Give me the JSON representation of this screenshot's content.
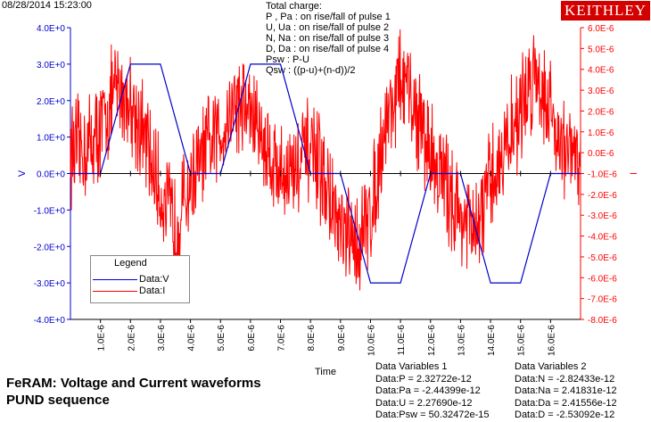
{
  "header": {
    "timestamp": "08/28/2014 15:23:00",
    "logo_text": "KEITHLEY"
  },
  "charge_info": {
    "title": "Total charge:",
    "lines": [
      "P , Pa  :  on rise/fall of pulse 1",
      "U, Ua  :  on rise/fall of pulse 2",
      "N, Na  :  on rise/fall of pulse 3",
      "D, Da  :  on rise/fall of pulse 4",
      "Psw :  P-U",
      "Qsw :  ((p-u)+(n-d))/2"
    ]
  },
  "chart_data": {
    "type": "line",
    "title": "FeRAM: Voltage and Current waveforms",
    "subtitle": "PUND sequence",
    "xlabel": "Time",
    "ylabel": "V",
    "y2label": "I",
    "xlim": [
      0,
      1.7e-05
    ],
    "ylim": [
      -4.0,
      4.0
    ],
    "y2lim": [
      -8e-06,
      6e-06
    ],
    "grid": false,
    "legend_position": "bottom-left",
    "legend_title": "Legend",
    "x_ticks": [
      "1.0E-6",
      "2.0E-6",
      "3.0E-6",
      "4.0E-6",
      "5.0E-6",
      "6.0E-6",
      "7.0E-6",
      "8.0E-6",
      "9.0E-6",
      "10.0E-6",
      "11.0E-6",
      "12.0E-6",
      "13.0E-6",
      "14.0E-6",
      "15.0E-6",
      "16.0E-6"
    ],
    "y_ticks": [
      "4.0E+0",
      "3.0E+0",
      "2.0E+0",
      "1.0E+0",
      "0.0E+0",
      "-1.0E+0",
      "-2.0E+0",
      "-3.0E+0",
      "-4.0E+0"
    ],
    "y2_ticks": [
      "6.0E-6",
      "5.0E-6",
      "4.0E-6",
      "3.0E-6",
      "2.0E-6",
      "1.0E-6",
      "0.0E-6",
      "-1.0E-6",
      "-2.0E-6",
      "-3.0E-6",
      "-4.0E-6",
      "-5.0E-6",
      "-6.0E-6",
      "-7.0E-6",
      "-8.0E-6"
    ],
    "series": [
      {
        "name": "Data:V",
        "color": "#0000cc",
        "axis": "left",
        "x": [
          0,
          1e-06,
          2e-06,
          3e-06,
          4e-06,
          5e-06,
          6e-06,
          7e-06,
          8e-06,
          9e-06,
          1e-05,
          1.1e-05,
          1.2e-05,
          1.3e-05,
          1.4e-05,
          1.5e-05,
          1.6e-05,
          1.7e-05
        ],
        "values": [
          0,
          0,
          3.0,
          3.0,
          0,
          0,
          3.0,
          3.0,
          0,
          0,
          -3.0,
          -3.0,
          0,
          0,
          -3.0,
          -3.0,
          0,
          0
        ]
      },
      {
        "name": "Data:I",
        "color": "#ff0000",
        "axis": "right",
        "noisy": true,
        "x": [
          0,
          5e-07,
          1e-06,
          1.5e-06,
          2e-06,
          2.5e-06,
          3e-06,
          3.5e-06,
          4e-06,
          4.5e-06,
          5e-06,
          5.5e-06,
          6e-06,
          6.5e-06,
          7e-06,
          7.5e-06,
          8e-06,
          8.5e-06,
          9e-06,
          9.5e-06,
          1e-05,
          1.05e-05,
          1.1e-05,
          1.15e-05,
          1.2e-05,
          1.25e-05,
          1.3e-05,
          1.35e-05,
          1.4e-05,
          1.45e-05,
          1.5e-05,
          1.55e-05,
          1.6e-05,
          1.65e-05,
          1.7e-05
        ],
        "values": [
          0,
          2e-07,
          1e-06,
          3e-06,
          2.5e-06,
          5e-07,
          -2e-06,
          -3.5e-06,
          -1.5e-06,
          0,
          1e-06,
          2.5e-06,
          2e-06,
          3e-07,
          -1e-06,
          -8e-07,
          2e-07,
          -1.5e-06,
          -4e-06,
          -4.5e-06,
          -3e-06,
          1.5e-06,
          3.5e-06,
          2e-06,
          0,
          -1.5e-06,
          -3e-06,
          -4e-06,
          -1.5e-06,
          3e-07,
          2e-06,
          4e-06,
          2e-06,
          0,
          -5e-07
        ]
      }
    ]
  },
  "data_variables_1": {
    "heading": "Data Variables 1",
    "rows": [
      "Data:P = 2.32722e-12",
      "Data:Pa = -2.44399e-12",
      "Data:U = 2.27690e-12",
      "Data:Psw = 50.32472e-15"
    ]
  },
  "data_variables_2": {
    "heading": "Data Variables 2",
    "rows": [
      "Data:N = -2.82433e-12",
      "Data:Na = 2.41831e-12",
      "Data:Da = 2.41556e-12",
      "Data:D = -2.53092e-12"
    ]
  }
}
